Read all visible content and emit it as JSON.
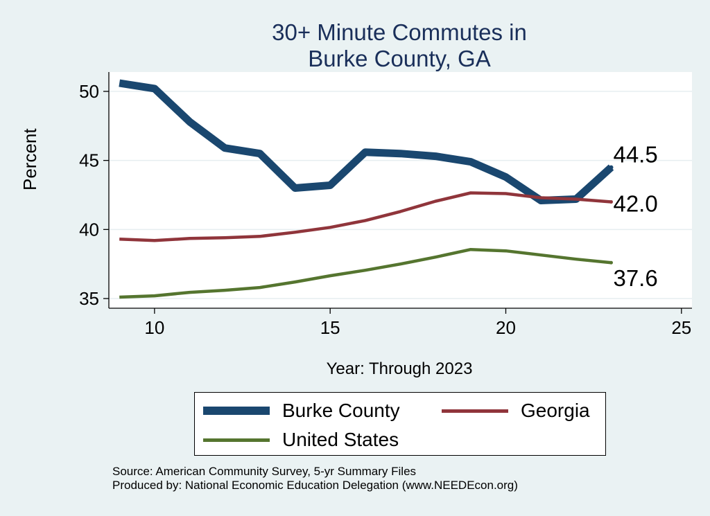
{
  "chart_data": {
    "type": "line",
    "title": [
      "30+ Minute Commutes in",
      "Burke County, GA"
    ],
    "xlabel": "Year: Through 2023",
    "ylabel": "Percent",
    "xlim": [
      8.7,
      25.3
    ],
    "ylim": [
      34.3,
      51.4
    ],
    "xticks": [
      10,
      15,
      20,
      25
    ],
    "yticks": [
      35,
      40,
      45,
      50
    ],
    "grid": true,
    "legend_position": "bottom",
    "x": [
      9,
      10,
      11,
      12,
      13,
      14,
      15,
      16,
      17,
      18,
      19,
      20,
      21,
      22,
      23
    ],
    "series": [
      {
        "name": "Burke County",
        "color": "#1a476f",
        "values": [
          50.6,
          50.2,
          47.8,
          45.9,
          45.5,
          43.0,
          43.2,
          45.6,
          45.5,
          45.3,
          44.9,
          43.8,
          42.1,
          42.2,
          44.5
        ],
        "end_label": "44.5"
      },
      {
        "name": "Georgia",
        "color": "#90353b",
        "values": [
          39.3,
          39.2,
          39.35,
          39.4,
          39.5,
          39.8,
          40.15,
          40.65,
          41.3,
          42.05,
          42.65,
          42.6,
          42.3,
          42.2,
          42.0
        ],
        "end_label": "42.0"
      },
      {
        "name": "United States",
        "color": "#55752f",
        "values": [
          35.1,
          35.2,
          35.45,
          35.6,
          35.8,
          36.2,
          36.65,
          37.05,
          37.5,
          38.0,
          38.55,
          38.45,
          38.15,
          37.85,
          37.6
        ],
        "end_label": "37.6"
      }
    ]
  },
  "source_lines": [
    "Source: American Community Survey, 5-yr Summary Files",
    "Produced by: National Economic Education Delegation (www.NEEDEcon.org)"
  ]
}
